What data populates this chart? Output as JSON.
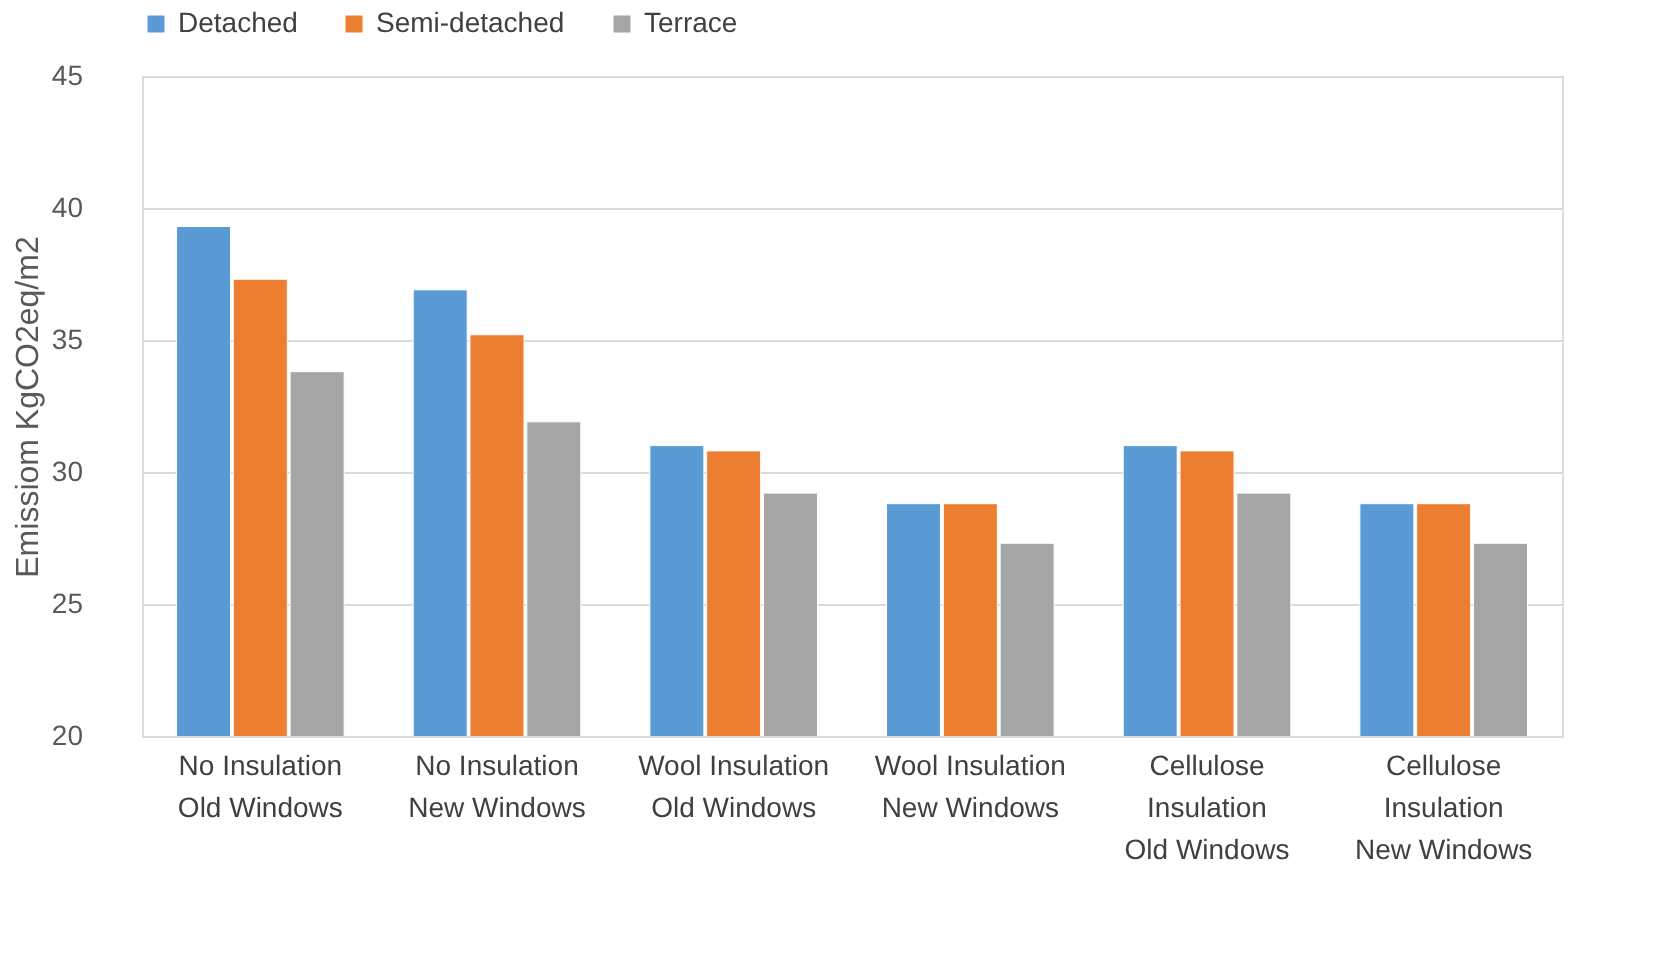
{
  "chart_data": {
    "type": "bar",
    "ylabel": "Emissiom KgCO2eq/m2",
    "categories": [
      "No Insulation\nOld Windows",
      "No Insulation\nNew Windows",
      "Wool Insulation\nOld Windows",
      "Wool Insulation\nNew Windows",
      "Cellulose\nInsulation\nOld Windows",
      "Cellulose\nInsulation\nNew Windows"
    ],
    "series": [
      {
        "name": "Detached",
        "color": "#5b9bd5",
        "values": [
          39.3,
          36.9,
          31.0,
          28.8,
          31.0,
          28.8
        ]
      },
      {
        "name": "Semi-detached",
        "color": "#ed7d31",
        "values": [
          37.3,
          35.2,
          30.8,
          28.8,
          30.8,
          28.8
        ]
      },
      {
        "name": "Terrace",
        "color": "#a5a5a5",
        "values": [
          33.8,
          31.9,
          29.2,
          27.3,
          29.2,
          27.3
        ]
      }
    ],
    "ylim": [
      20,
      45
    ],
    "yticks": [
      20,
      25,
      30,
      35,
      40,
      45
    ],
    "grid": "y",
    "legend": "top"
  }
}
